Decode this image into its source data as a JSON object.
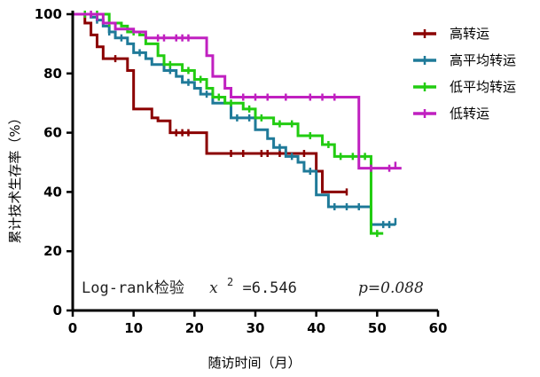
{
  "chart_data": {
    "type": "line",
    "xlabel": "随访时间（月）",
    "ylabel": "累计技术生存率（%）",
    "xlim": [
      0,
      60
    ],
    "ylim": [
      0,
      100
    ],
    "x_ticks": [
      "0",
      "10",
      "20",
      "30",
      "40",
      "50",
      "60"
    ],
    "y_ticks": [
      "0",
      "20",
      "40",
      "60",
      "80",
      "100"
    ],
    "grid": false,
    "legend_position": "top-right",
    "annotation": {
      "test": "Log-rank检验",
      "stat_symbol": "x",
      "stat_sup": "2",
      "stat_value": "=6.546",
      "p_text": "p=0.088"
    },
    "series": [
      {
        "name": "高转运",
        "color": "#8B0000",
        "steps": [
          [
            0,
            100
          ],
          [
            2,
            97
          ],
          [
            3,
            93
          ],
          [
            4,
            89
          ],
          [
            5,
            85
          ],
          [
            9,
            81
          ],
          [
            10,
            68
          ],
          [
            13,
            65
          ],
          [
            14,
            64
          ],
          [
            16,
            60
          ],
          [
            22,
            53
          ],
          [
            40,
            47
          ],
          [
            41,
            40
          ],
          [
            45,
            40
          ]
        ],
        "censored": [
          [
            7,
            85
          ],
          [
            17,
            60
          ],
          [
            18,
            60
          ],
          [
            19,
            60
          ],
          [
            26,
            53
          ],
          [
            28,
            53
          ],
          [
            31,
            53
          ],
          [
            32,
            53
          ],
          [
            34,
            53
          ],
          [
            35,
            53
          ],
          [
            38,
            53
          ],
          [
            45,
            40
          ]
        ]
      },
      {
        "name": "高平均转运",
        "color": "#1F7A99",
        "steps": [
          [
            0,
            100
          ],
          [
            3,
            99
          ],
          [
            4,
            98
          ],
          [
            5,
            96
          ],
          [
            6,
            94
          ],
          [
            7,
            92
          ],
          [
            9,
            90
          ],
          [
            10,
            87
          ],
          [
            12,
            85
          ],
          [
            13,
            83
          ],
          [
            15,
            81
          ],
          [
            17,
            79
          ],
          [
            18,
            77
          ],
          [
            20,
            75
          ],
          [
            21,
            73
          ],
          [
            23,
            70
          ],
          [
            26,
            65
          ],
          [
            30,
            61
          ],
          [
            32,
            58
          ],
          [
            33,
            55
          ],
          [
            35,
            52
          ],
          [
            37,
            50
          ],
          [
            38,
            47
          ],
          [
            40,
            39
          ],
          [
            42,
            35
          ],
          [
            49,
            29
          ],
          [
            53,
            29
          ]
        ],
        "censored": [
          [
            4,
            98
          ],
          [
            6,
            94
          ],
          [
            8,
            92
          ],
          [
            11,
            87
          ],
          [
            16,
            81
          ],
          [
            19,
            77
          ],
          [
            22,
            73
          ],
          [
            27,
            65
          ],
          [
            29,
            65
          ],
          [
            34,
            55
          ],
          [
            36,
            52
          ],
          [
            39,
            47
          ],
          [
            43,
            35
          ],
          [
            45,
            35
          ],
          [
            47,
            35
          ],
          [
            51,
            29
          ],
          [
            52,
            29
          ],
          [
            53,
            30
          ]
        ]
      },
      {
        "name": "低平均转运",
        "color": "#22CC11",
        "steps": [
          [
            0,
            100
          ],
          [
            6,
            97
          ],
          [
            8,
            96
          ],
          [
            9,
            94
          ],
          [
            11,
            93
          ],
          [
            12,
            90
          ],
          [
            14,
            86
          ],
          [
            15,
            83
          ],
          [
            18,
            81
          ],
          [
            20,
            78
          ],
          [
            22,
            75
          ],
          [
            23,
            72
          ],
          [
            25,
            70
          ],
          [
            28,
            68
          ],
          [
            30,
            65
          ],
          [
            33,
            63
          ],
          [
            37,
            59
          ],
          [
            41,
            56
          ],
          [
            43,
            52
          ],
          [
            49,
            26
          ],
          [
            51,
            26
          ]
        ],
        "censored": [
          [
            2,
            100
          ],
          [
            4,
            100
          ],
          [
            6,
            97
          ],
          [
            10,
            94
          ],
          [
            16,
            83
          ],
          [
            19,
            81
          ],
          [
            21,
            78
          ],
          [
            24,
            72
          ],
          [
            26,
            70
          ],
          [
            29,
            68
          ],
          [
            31,
            65
          ],
          [
            34,
            63
          ],
          [
            36,
            63
          ],
          [
            39,
            59
          ],
          [
            42,
            56
          ],
          [
            44,
            52
          ],
          [
            46,
            52
          ],
          [
            48,
            52
          ],
          [
            50,
            26
          ]
        ]
      },
      {
        "name": "低转运",
        "color": "#C020C0",
        "steps": [
          [
            0,
            100
          ],
          [
            5,
            97
          ],
          [
            7,
            95
          ],
          [
            10,
            94
          ],
          [
            12,
            92
          ],
          [
            21,
            92
          ],
          [
            22,
            86
          ],
          [
            23,
            79
          ],
          [
            25,
            75
          ],
          [
            26,
            72
          ],
          [
            46,
            72
          ],
          [
            47,
            48
          ],
          [
            54,
            48
          ]
        ],
        "censored": [
          [
            3,
            100
          ],
          [
            4,
            99
          ],
          [
            14,
            92
          ],
          [
            15,
            92
          ],
          [
            17,
            92
          ],
          [
            18,
            92
          ],
          [
            19,
            92
          ],
          [
            28,
            72
          ],
          [
            30,
            72
          ],
          [
            32,
            72
          ],
          [
            35,
            72
          ],
          [
            39,
            72
          ],
          [
            41,
            72
          ],
          [
            43,
            72
          ],
          [
            49,
            48
          ],
          [
            52,
            48
          ],
          [
            53,
            49
          ]
        ]
      }
    ]
  }
}
